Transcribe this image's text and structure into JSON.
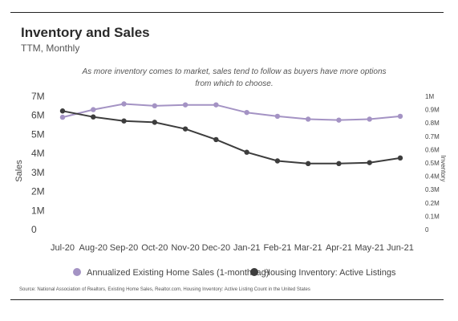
{
  "header": {
    "title": "Inventory and Sales",
    "subtitle": "TTM, Monthly",
    "annotation": "As more inventory comes to market, sales tend to follow as buyers have more options from which to choose."
  },
  "footer": {
    "source": "Source:  National Association of Realtors, Existing Home Sales, Realtor.com, Housing Inventory: Active Listing Count in the United States"
  },
  "chart_data": {
    "type": "line",
    "categories": [
      "Jul-20",
      "Aug-20",
      "Sep-20",
      "Oct-20",
      "Nov-20",
      "Dec-20",
      "Jan-21",
      "Feb-21",
      "Mar-21",
      "Apr-21",
      "May-21",
      "Jun-21"
    ],
    "ylabel": "Sales",
    "y2label": "Inventory",
    "ylim": [
      0,
      7000000
    ],
    "y2lim": [
      0,
      1000000
    ],
    "ytick_labels": [
      "0",
      "1M",
      "2M",
      "3M",
      "4M",
      "5M",
      "6M",
      "7M"
    ],
    "y2tick_labels": [
      "0",
      "0.1M",
      "0.2M",
      "0.3M",
      "0.4M",
      "0.5M",
      "0.6M",
      "0.7M",
      "0.8M",
      "0.9M",
      "1M"
    ],
    "grid": false,
    "legend_position": "bottom",
    "series": [
      {
        "name": "Annualized Existing Home Sales (1-month lag)",
        "axis": "left",
        "color": "#a493c4",
        "values": [
          5900000,
          6300000,
          6600000,
          6500000,
          6550000,
          6550000,
          6150000,
          5950000,
          5800000,
          5750000,
          5800000,
          5950000
        ]
      },
      {
        "name": "Housing Inventory: Active Listings",
        "axis": "right",
        "color": "#3d3d3d",
        "values": [
          890000,
          845000,
          815000,
          805000,
          755000,
          675000,
          580000,
          515000,
          495000,
          495000,
          502000,
          537000
        ]
      }
    ]
  }
}
